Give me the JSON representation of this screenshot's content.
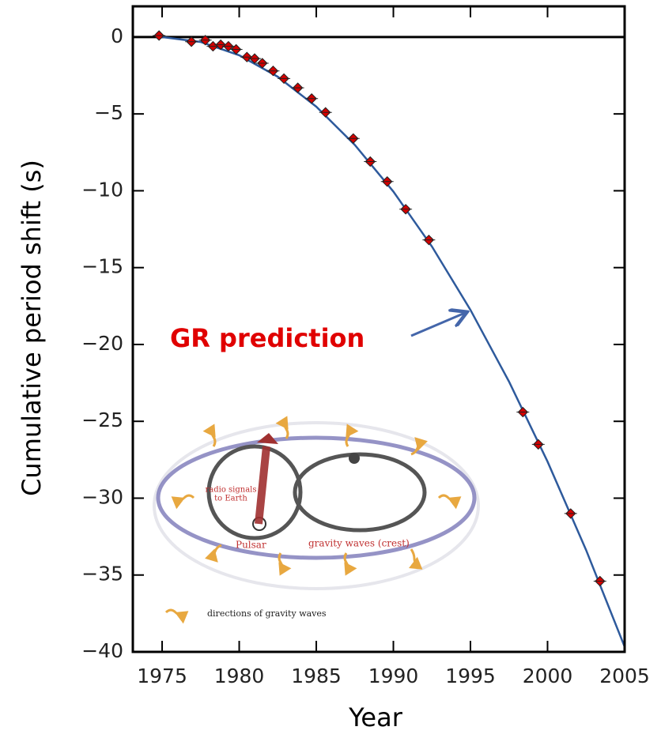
{
  "chart_data": {
    "type": "scatter",
    "x_label": "Year",
    "y_label": "Cumulative period shift (s)",
    "xlim": [
      1973.1,
      2005
    ],
    "ylim": [
      -40,
      2
    ],
    "xticks": [
      1975,
      1980,
      1985,
      1990,
      1995,
      2000,
      2005
    ],
    "yticks": [
      0,
      {
        "value": -5,
        "label": "−5"
      },
      {
        "value": -10,
        "label": "−10"
      },
      {
        "value": -15,
        "label": "−15"
      },
      {
        "value": -20,
        "label": "−20"
      },
      {
        "value": -25,
        "label": "−25"
      },
      {
        "value": -30,
        "label": "−30"
      },
      {
        "value": -35,
        "label": "−35"
      },
      {
        "value": -40,
        "label": "−40"
      }
    ],
    "reference_line": 0,
    "points": {
      "color": "#d40000",
      "x": [
        1974.8,
        1976.9,
        1977.8,
        1978.3,
        1978.8,
        1979.3,
        1979.8,
        1980.5,
        1981.0,
        1981.5,
        1982.2,
        1982.9,
        1983.8,
        1984.7,
        1985.6,
        1987.4,
        1988.5,
        1989.6,
        1990.8,
        1992.3,
        1998.4,
        1999.4,
        2001.5,
        2003.4
      ],
      "y": [
        0.1,
        -0.3,
        -0.2,
        -0.6,
        -0.5,
        -0.6,
        -0.8,
        -1.3,
        -1.4,
        -1.7,
        -2.2,
        -2.7,
        -3.3,
        -4.0,
        -4.9,
        -6.6,
        -8.1,
        -9.4,
        -11.2,
        -13.2,
        -24.4,
        -26.5,
        -31.0,
        -35.4
      ]
    },
    "curve": {
      "color": "#2e5a9c",
      "x": [
        1975,
        1977.5,
        1980,
        1982.5,
        1985,
        1987.5,
        1990,
        1992.5,
        1995,
        1997.5,
        2000,
        2002.5,
        2005
      ],
      "y": [
        0,
        -0.32,
        -1.18,
        -2.58,
        -4.53,
        -7.02,
        -10.05,
        -13.63,
        -17.75,
        -22.42,
        -27.62,
        -33.38,
        -39.67
      ]
    },
    "annotation": {
      "text": "GR prediction",
      "color": "#e00000"
    },
    "inset": {
      "labels": [
        "radio signals",
        "to Earth",
        "Pulsar",
        "gravity waves (crest)",
        "directions of gravity waves"
      ]
    }
  }
}
